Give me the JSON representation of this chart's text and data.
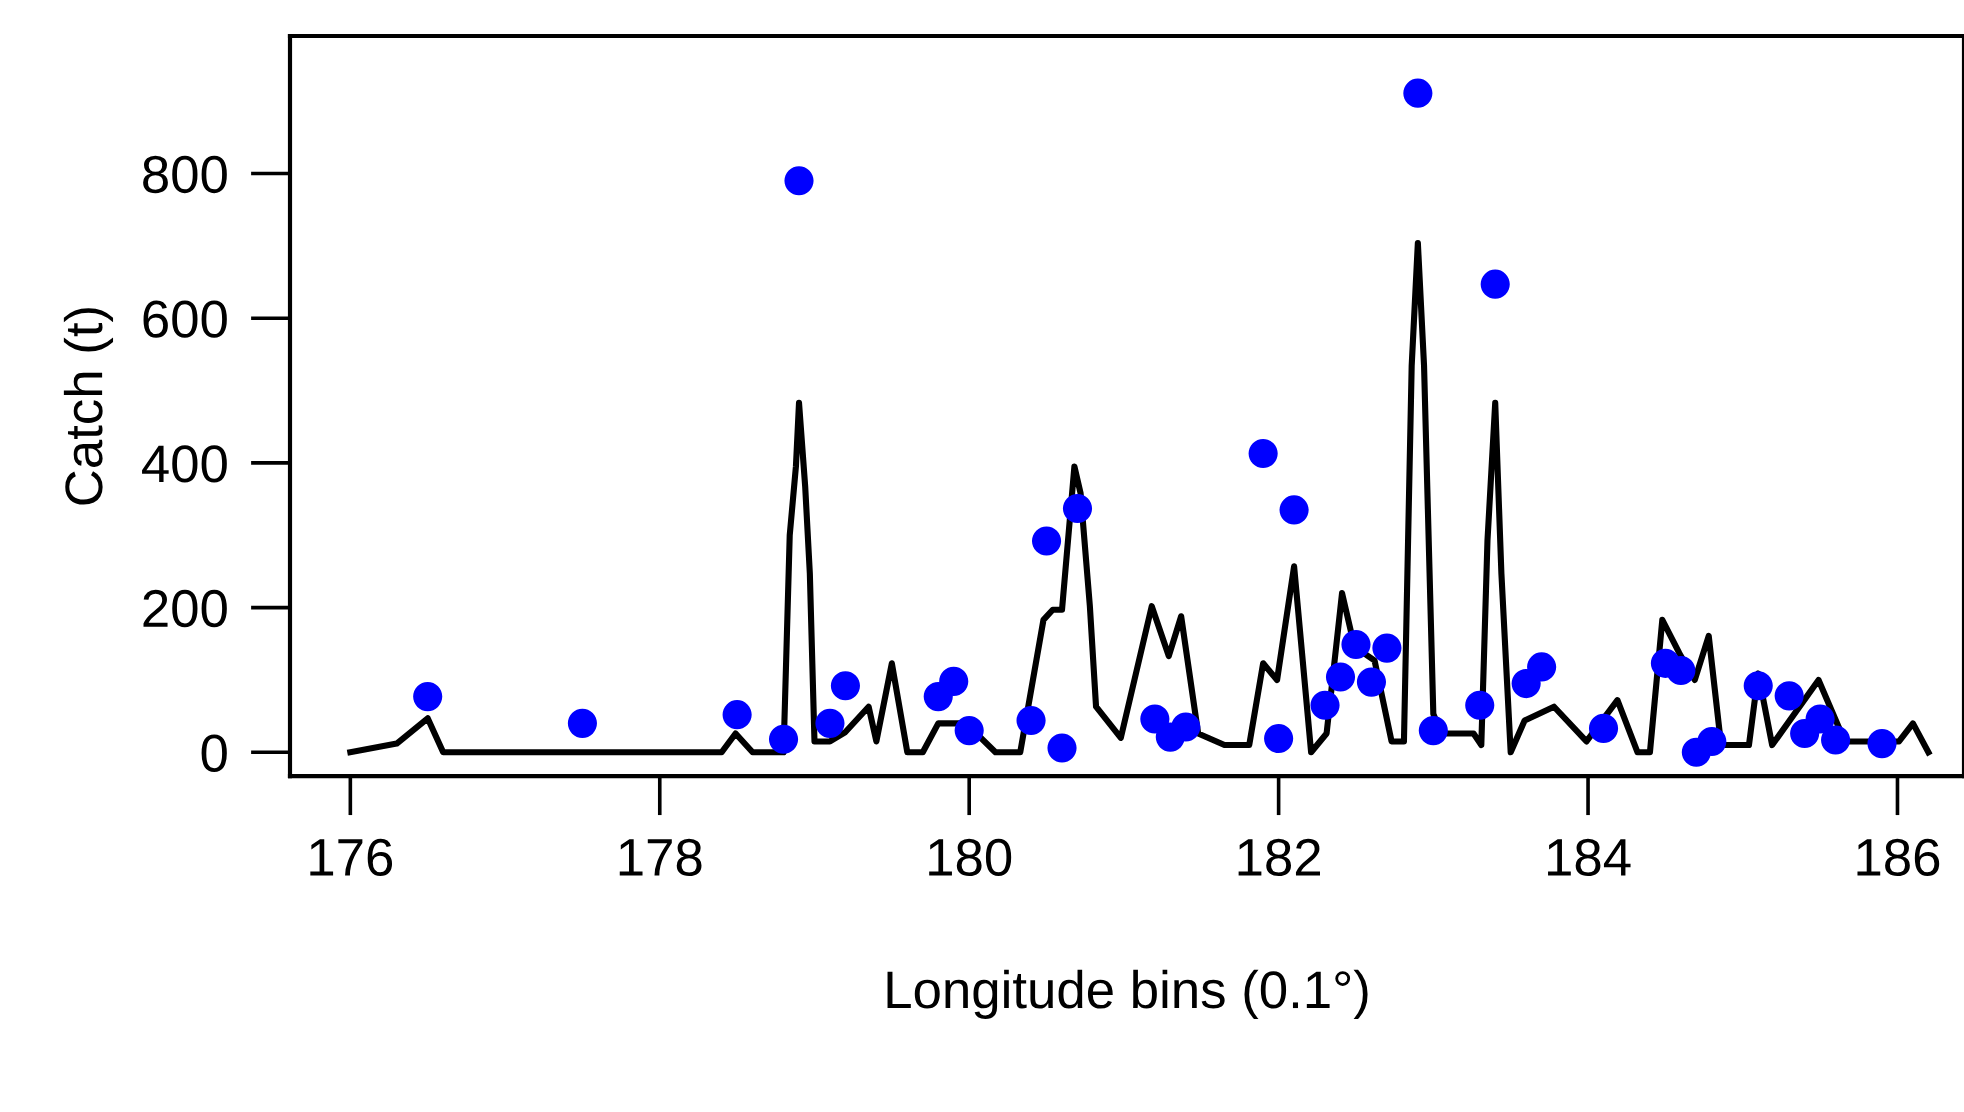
{
  "chart_data": {
    "type": "scatter",
    "xlabel": "Longitude bins (0.1°)",
    "ylabel": "Catch (t)",
    "xlim": [
      175.61,
      186.43
    ],
    "ylim": [
      -33,
      990
    ],
    "xticks": [
      176,
      178,
      180,
      182,
      184,
      186
    ],
    "yticks": [
      0,
      200,
      400,
      600,
      800
    ],
    "grid": false,
    "legend": false,
    "series": [
      {
        "type": "line",
        "color": "#000000",
        "marker": "none",
        "line_style": "solid",
        "x": [
          176.0,
          176.3,
          176.5,
          176.6,
          178.4,
          178.49,
          178.6,
          178.8,
          178.84,
          178.88,
          178.9,
          178.94,
          178.97,
          179.0,
          179.1,
          179.2,
          179.35,
          179.4,
          179.5,
          179.6,
          179.7,
          179.8,
          179.98,
          180.17,
          180.33,
          180.48,
          180.54,
          180.6,
          180.68,
          180.72,
          180.78,
          180.82,
          180.98,
          181.18,
          181.29,
          181.37,
          181.48,
          181.65,
          181.81,
          181.9,
          181.99,
          182.1,
          182.21,
          182.31,
          182.41,
          182.49,
          182.62,
          182.73,
          182.81,
          182.86,
          182.9,
          182.94,
          183.0,
          183.05,
          183.26,
          183.31,
          183.35,
          183.4,
          183.44,
          183.5,
          183.59,
          183.78,
          183.99,
          184.19,
          184.32,
          184.4,
          184.48,
          184.59,
          184.69,
          184.78,
          184.86,
          185.04,
          185.1,
          185.19,
          185.49,
          185.66,
          186.01,
          186.1,
          186.2
        ],
        "values": [
          0,
          12,
          47,
          0,
          0,
          26,
          0,
          0,
          300,
          395,
          483,
          367,
          247,
          15,
          15,
          28,
          63,
          15,
          123,
          0,
          0,
          40,
          40,
          0,
          0,
          183,
          197,
          197,
          395,
          358,
          202,
          63,
          20,
          202,
          133,
          188,
          26,
          10,
          10,
          123,
          100,
          257,
          0,
          26,
          220,
          146,
          127,
          15,
          15,
          534,
          704,
          534,
          53,
          26,
          26,
          10,
          293,
          483,
          247,
          0,
          44,
          63,
          15,
          72,
          0,
          0,
          183,
          137,
          100,
          161,
          10,
          10,
          109,
          10,
          100,
          15,
          15,
          40,
          0
        ]
      },
      {
        "color": "#0000ff",
        "marker": "circle",
        "x": [
          176.5,
          177.5,
          178.5,
          178.8,
          178.9,
          179.1,
          179.2,
          179.8,
          179.9,
          180.0,
          180.4,
          180.5,
          180.6,
          180.7,
          181.2,
          181.3,
          181.4,
          181.9,
          182.0,
          182.1,
          182.3,
          182.4,
          182.5,
          182.6,
          182.7,
          182.9,
          183.0,
          183.3,
          183.4,
          183.6,
          183.7,
          184.1,
          184.5,
          184.6,
          184.7,
          184.8,
          185.1,
          185.3,
          185.4,
          185.5,
          185.6,
          185.9
        ],
        "values": [
          77,
          40,
          52,
          18,
          790,
          40,
          92,
          77,
          98,
          30,
          44,
          292,
          6,
          337,
          46,
          21,
          35,
          413,
          19,
          335,
          65,
          104,
          149,
          97,
          144,
          911,
          30,
          65,
          647,
          95,
          118,
          33,
          123,
          113,
          0,
          15,
          92,
          78,
          26,
          46,
          17,
          12
        ]
      }
    ]
  }
}
